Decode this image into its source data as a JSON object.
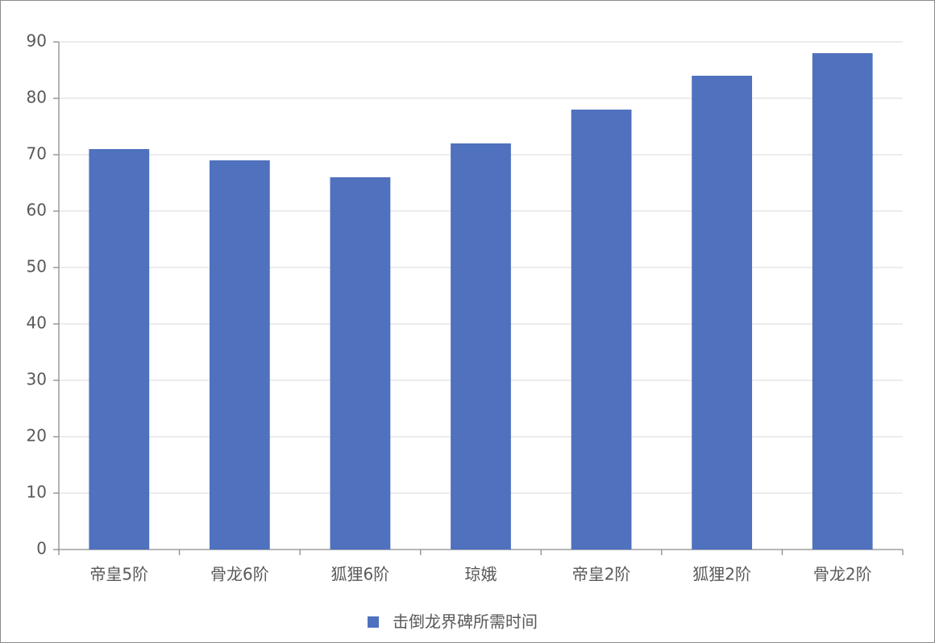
{
  "chart_data": {
    "type": "bar",
    "categories": [
      "帝皇5阶",
      "骨龙6阶",
      "狐狸6阶",
      "琼娥",
      "帝皇2阶",
      "狐狸2阶",
      "骨龙2阶"
    ],
    "series": [
      {
        "name": "击倒龙界碑所需时间",
        "color": "#4f71be",
        "values": [
          71,
          69,
          66,
          72,
          78,
          84,
          88
        ]
      }
    ],
    "ylim": [
      0,
      90
    ],
    "yticks": [
      0,
      10,
      20,
      30,
      40,
      50,
      60,
      70,
      80,
      90
    ],
    "grid": true,
    "legend": "bottom"
  }
}
